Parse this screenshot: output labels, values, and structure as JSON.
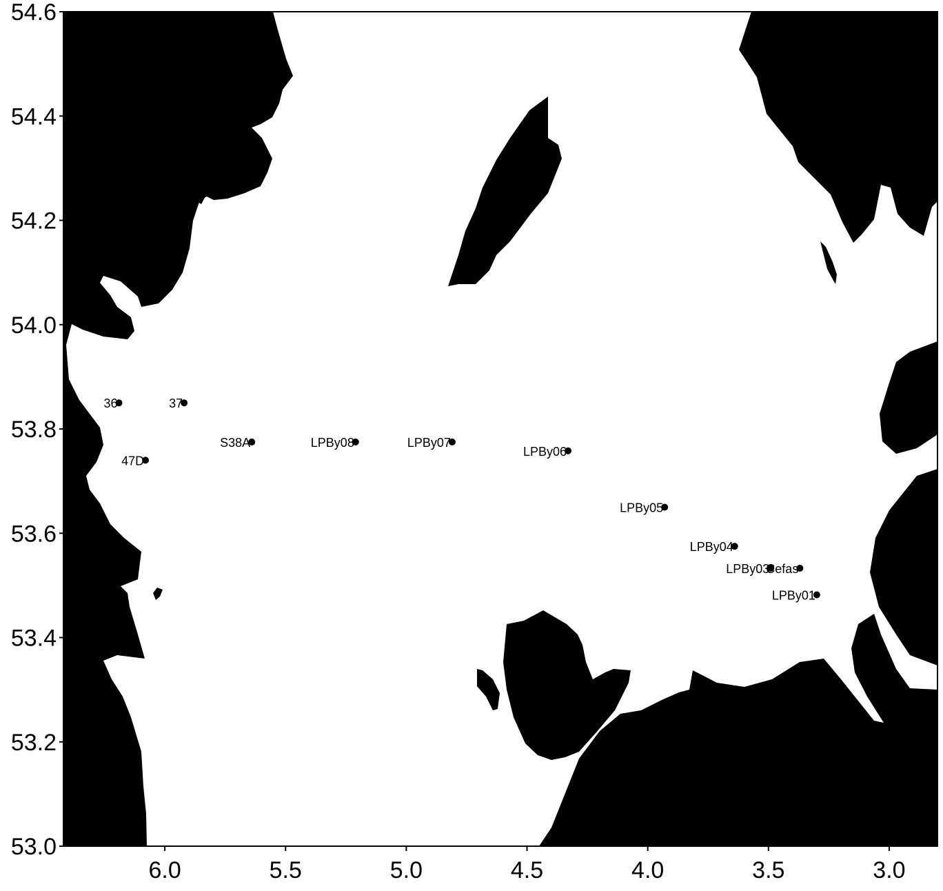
{
  "chart_data": {
    "type": "scatter",
    "x_axis": {
      "range": [
        6.42,
        2.8
      ],
      "reversed": true,
      "ticks": [
        6.0,
        5.5,
        5.0,
        4.5,
        4.0,
        3.5,
        3.0
      ],
      "tick_labels": [
        "6.0",
        "5.5",
        "5.0",
        "4.5",
        "4.0",
        "3.5",
        "3.0"
      ]
    },
    "y_axis": {
      "range": [
        53.0,
        54.6
      ],
      "ticks": [
        53.0,
        53.2,
        53.4,
        53.6,
        53.8,
        54.0,
        54.2,
        54.4,
        54.6
      ],
      "tick_labels": [
        "53.0",
        "53.2",
        "53.4",
        "53.6",
        "53.8",
        "54.0",
        "54.2",
        "54.4",
        "54.6"
      ]
    },
    "grid": false,
    "legend": "none",
    "colors": {
      "land": "#000000",
      "sea": "#ffffff",
      "points": "#000000"
    },
    "stations": [
      {
        "label": "36",
        "x": 6.19,
        "y": 53.85
      },
      {
        "label": "37",
        "x": 5.92,
        "y": 53.85
      },
      {
        "label": "S38A",
        "x": 5.64,
        "y": 53.775
      },
      {
        "label": "47D",
        "x": 6.08,
        "y": 53.74
      },
      {
        "label": "LPBy08",
        "x": 5.21,
        "y": 53.775
      },
      {
        "label": "LPBy07",
        "x": 4.81,
        "y": 53.775
      },
      {
        "label": "LPBy06",
        "x": 4.33,
        "y": 53.758
      },
      {
        "label": "LPBy05",
        "x": 3.93,
        "y": 53.65
      },
      {
        "label": "LPBy04",
        "x": 3.64,
        "y": 53.575
      },
      {
        "label": "LPBy03",
        "x": 3.49,
        "y": 53.533
      },
      {
        "label": "Cefas",
        "x": 3.37,
        "y": 53.533
      },
      {
        "label": "LPBy01",
        "x": 3.3,
        "y": 53.482
      }
    ]
  }
}
